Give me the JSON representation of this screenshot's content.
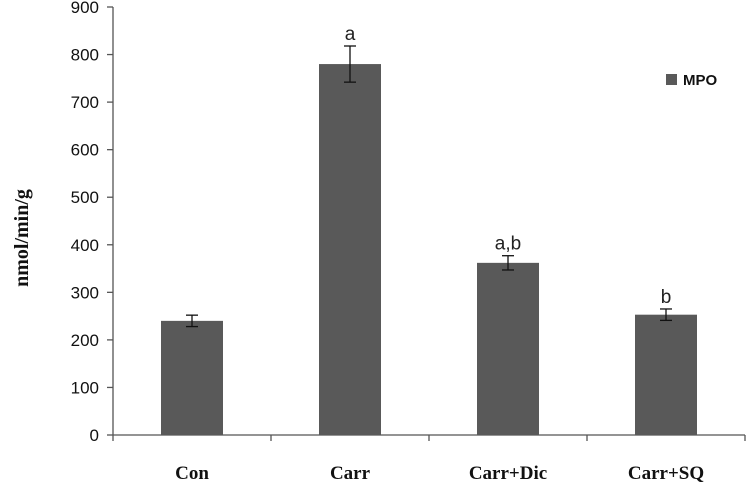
{
  "chart_data": {
    "type": "bar",
    "title": "",
    "xlabel": "",
    "ylabel": "nmol/min/g",
    "ylim": [
      0,
      900
    ],
    "yticks": [
      0,
      100,
      200,
      300,
      400,
      500,
      600,
      700,
      800,
      900
    ],
    "categories": [
      "Con",
      "Carr",
      "Carr+Dic",
      "Carr+SQ"
    ],
    "series": [
      {
        "name": "MPO",
        "color": "#595959",
        "values": [
          240,
          780,
          362,
          253
        ],
        "errors": [
          12,
          38,
          15,
          12
        ],
        "annotations": [
          "",
          "a",
          "a,b",
          "b"
        ]
      }
    ],
    "legend": {
      "placement": "top-right"
    },
    "grid": false
  }
}
